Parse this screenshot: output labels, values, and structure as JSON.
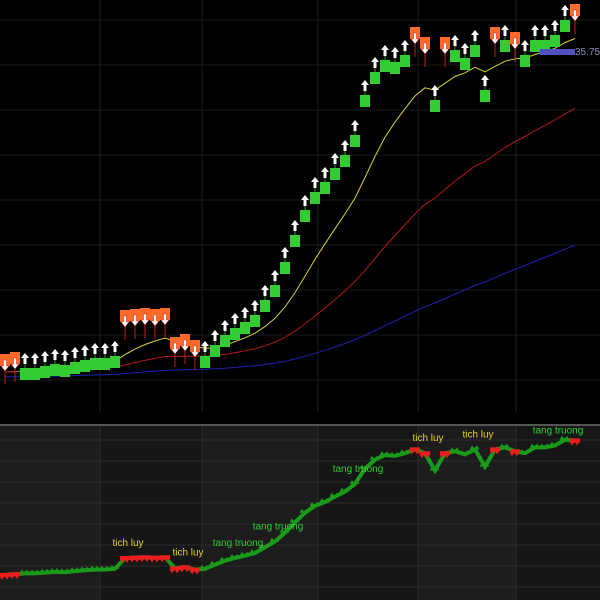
{
  "chart_data": {
    "type": "line",
    "price_label": "35.75",
    "closes": [
      16.61,
      16.73,
      16.85,
      16.85,
      16.97,
      17.09,
      17.03,
      17.21,
      17.33,
      17.45,
      17.45,
      17.57,
      19.25,
      19.31,
      19.37,
      19.31,
      19.37,
      17.63,
      17.81,
      17.45,
      17.57,
      18.23,
      18.83,
      19.25,
      19.61,
      20.03,
      20.93,
      21.83,
      23.21,
      24.83,
      26.33,
      27.41,
      28.01,
      28.85,
      29.63,
      30.83,
      33.23,
      34.61,
      35.33,
      35.21,
      35.63,
      36.23,
      35.63,
      32.93,
      35.63,
      35.93,
      35.45,
      36.23,
      33.53,
      36.23,
      36.53,
      35.93,
      35.63,
      36.53,
      36.53,
      36.83,
      37.73,
      37.61
    ],
    "signals": [
      "down",
      "down",
      "up",
      "up",
      "up",
      "up",
      "up",
      "up",
      "up",
      "up",
      "up",
      "up",
      "down",
      "down",
      "down",
      "down",
      "down",
      "down",
      "down",
      "down",
      "up",
      "up",
      "up",
      "up",
      "up",
      "up",
      "up",
      "up",
      "up",
      "up",
      "up",
      "up",
      "up",
      "up",
      "up",
      "up",
      "up",
      "up",
      "up",
      "up",
      "up",
      "down",
      "down",
      "up",
      "down",
      "up",
      "up",
      "up",
      "up",
      "down",
      "up",
      "down",
      "up",
      "up",
      "up",
      "up",
      "up",
      "down"
    ],
    "moving_averages": [
      {
        "color": "#d8d030",
        "alpha": 0.2
      },
      {
        "color": "#b01818",
        "alpha": 0.06
      },
      {
        "color": "#2020b0",
        "alpha": 0.018
      }
    ],
    "colors": {
      "up": "#33cc33",
      "down": "#ff6a2a",
      "arrow": "#ffffff",
      "indicator_up": "#1a9a1a",
      "indicator_down": "#ee1c1c"
    },
    "annotations": [
      {
        "text": "tich luy",
        "index": 12,
        "color": "#e0d030"
      },
      {
        "text": "tich luy",
        "index": 18,
        "color": "#e0d030"
      },
      {
        "text": "tang truong",
        "index": 23,
        "color": "#33cc33"
      },
      {
        "text": "tang truong",
        "index": 27,
        "color": "#33cc33"
      },
      {
        "text": "tang truong",
        "index": 35,
        "color": "#33cc33"
      },
      {
        "text": "tich luy",
        "index": 42,
        "color": "#e0d030"
      },
      {
        "text": "tich luy",
        "index": 47,
        "color": "#e0d030"
      },
      {
        "text": "tang truong",
        "index": 55,
        "color": "#33cc33"
      }
    ]
  }
}
